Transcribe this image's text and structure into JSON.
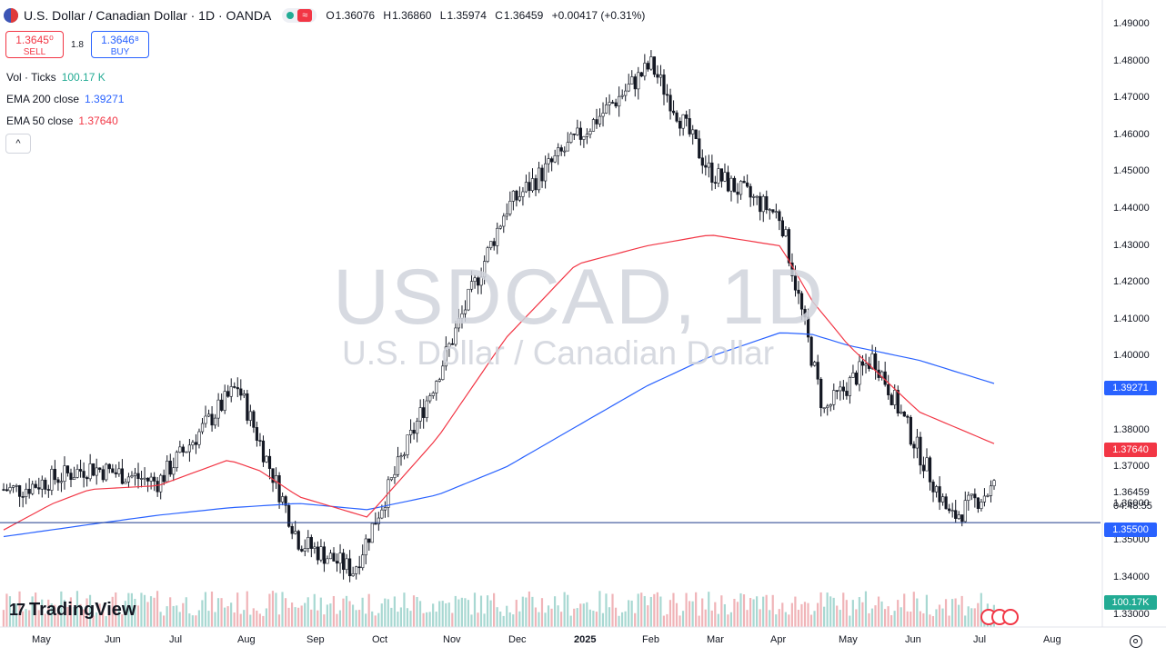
{
  "header": {
    "title": "U.S. Dollar / Canadian Dollar · 1D · OANDA",
    "wave_icon": "≈",
    "ohlc": {
      "o_label": "O",
      "o": "1.36076",
      "h_label": "H",
      "h": "1.36860",
      "l_label": "L",
      "l": "1.35974",
      "c_label": "C",
      "c": "1.36459",
      "change": "+0.00417 (+0.31%)"
    }
  },
  "trade": {
    "sell_price": "1.3645⁰",
    "sell_label": "SELL",
    "spread": "1.8",
    "buy_price": "1.3646⁸",
    "buy_label": "BUY"
  },
  "indicators": [
    {
      "label": "Vol · Ticks",
      "value": "100.17 K",
      "color": "#22ab94"
    },
    {
      "label": "EMA 200 close",
      "value": "1.39271",
      "color": "#2962ff"
    },
    {
      "label": "EMA 50 close",
      "value": "1.37640",
      "color": "#f23645"
    }
  ],
  "collapse_icon": "chevron-up-icon",
  "collapse_glyph": "^",
  "watermark": {
    "symbol": "USDCAD, 1D",
    "name": "U.S. Dollar / Canadian Dollar"
  },
  "logo": {
    "mark": "17",
    "text": "TradingView"
  },
  "price_axis": {
    "ticks": [
      "1.49000",
      "1.48000",
      "1.47000",
      "1.46000",
      "1.45000",
      "1.44000",
      "1.43000",
      "1.42000",
      "1.41000",
      "1.40000",
      "1.39000",
      "1.38000",
      "1.37000",
      "1.36000",
      "1.35000",
      "1.34000",
      "1.33000"
    ],
    "tick_values": [
      1.49,
      1.48,
      1.47,
      1.46,
      1.45,
      1.44,
      1.43,
      1.42,
      1.41,
      1.4,
      1.39,
      1.38,
      1.37,
      1.36,
      1.35,
      1.34,
      1.33
    ],
    "ema200_tag": "1.39271",
    "ema50_tag": "1.37640",
    "current_price": "1.36459",
    "countdown": "04:48:55",
    "hline_tag": "1.35500",
    "volume_tag": "100.17K",
    "tag_colors": {
      "ema200": "#2962ff",
      "ema50": "#f23645",
      "hline": "#2962ff",
      "volume": "#22ab94"
    }
  },
  "time_axis": {
    "labels": [
      "May",
      "Jun",
      "Jul",
      "Aug",
      "Sep",
      "Oct",
      "Nov",
      "Dec",
      "2025",
      "Feb",
      "Mar",
      "Apr",
      "May",
      "Jun",
      "Jul",
      "Aug"
    ]
  },
  "chart_data": {
    "type": "candlestick",
    "title": "USDCAD, 1D",
    "ylim": [
      1.325,
      1.495
    ],
    "horizontal_line": 1.355,
    "series": [
      {
        "name": "EMA 200 close",
        "color": "#2962ff",
        "x": [
          "2024-04-24",
          "2024-06-01",
          "2024-07-01",
          "2024-08-01",
          "2024-09-01",
          "2024-10-01",
          "2024-11-01",
          "2024-12-01",
          "2025-01-01",
          "2025-02-01",
          "2025-03-01",
          "2025-04-01",
          "2025-04-15",
          "2025-05-01",
          "2025-06-01",
          "2025-07-04"
        ],
        "values": [
          1.3512,
          1.3545,
          1.357,
          1.359,
          1.3602,
          1.3585,
          1.3625,
          1.37,
          1.381,
          1.392,
          1.4,
          1.4065,
          1.406,
          1.403,
          1.399,
          1.3927
        ]
      },
      {
        "name": "EMA 50 close",
        "color": "#f23645",
        "x": [
          "2024-04-24",
          "2024-05-15",
          "2024-06-01",
          "2024-07-01",
          "2024-08-01",
          "2024-08-15",
          "2024-09-01",
          "2024-10-01",
          "2024-11-01",
          "2024-12-01",
          "2025-01-01",
          "2025-02-01",
          "2025-03-01",
          "2025-04-01",
          "2025-04-15",
          "2025-05-01",
          "2025-06-01",
          "2025-07-04"
        ],
        "values": [
          1.353,
          1.36,
          1.364,
          1.365,
          1.372,
          1.369,
          1.362,
          1.3565,
          1.378,
          1.405,
          1.425,
          1.43,
          1.433,
          1.43,
          1.415,
          1.403,
          1.385,
          1.3764
        ]
      }
    ],
    "candles_ohlc_sampled": [
      {
        "x": "2024-05-01",
        "close": 1.364
      },
      {
        "x": "2024-06-01",
        "close": 1.37
      },
      {
        "x": "2024-07-01",
        "close": 1.366
      },
      {
        "x": "2024-08-05",
        "close": 1.392
      },
      {
        "x": "2024-09-01",
        "close": 1.35
      },
      {
        "x": "2024-09-25",
        "close": 1.342
      },
      {
        "x": "2024-11-01",
        "close": 1.395
      },
      {
        "x": "2024-12-01",
        "close": 1.44
      },
      {
        "x": "2025-02-03",
        "close": 1.479
      },
      {
        "x": "2025-03-01",
        "close": 1.45
      },
      {
        "x": "2025-04-01",
        "close": 1.438
      },
      {
        "x": "2025-04-20",
        "close": 1.385
      },
      {
        "x": "2025-05-12",
        "close": 1.4
      },
      {
        "x": "2025-06-15",
        "close": 1.356
      },
      {
        "x": "2025-07-04",
        "close": 1.3646
      }
    ],
    "volume_last": "100.17K"
  }
}
